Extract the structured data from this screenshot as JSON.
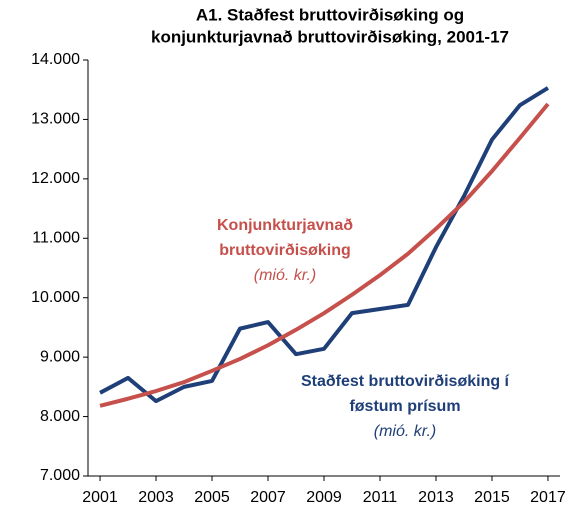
{
  "chart_data": {
    "type": "line",
    "title": [
      "A1. Staðfest bruttovirðisøking  og",
      "konjunkturjavnað bruttovirðisøking,  2001-17"
    ],
    "x": [
      2001,
      2002,
      2003,
      2004,
      2005,
      2006,
      2007,
      2008,
      2009,
      2010,
      2011,
      2012,
      2013,
      2014,
      2015,
      2016,
      2017
    ],
    "series": [
      {
        "color": "#1f3f78",
        "values": [
          8400,
          8650,
          8260,
          8500,
          8600,
          9480,
          9590,
          9050,
          9140,
          9740,
          9810,
          9880,
          10850,
          11710,
          12660,
          13240,
          13530
        ]
      },
      {
        "color": "#c6504b",
        "values": [
          8180,
          8300,
          8430,
          8580,
          8770,
          8970,
          9200,
          9460,
          9740,
          10050,
          10380,
          10740,
          11160,
          11610,
          12130,
          12690,
          13260
        ]
      }
    ],
    "annotations": [
      {
        "lines": [
          "Konjunkturjavnað",
          "bruttovirðisøking",
          "(mió. kr.)"
        ],
        "color": "#c6504b"
      },
      {
        "lines": [
          "Staðfest bruttovirðisøking í",
          "føstum prísum",
          "(mió. kr.)"
        ],
        "color": "#1f3f78"
      }
    ],
    "xlim": [
      2000.57,
      2017.43
    ],
    "xticks": [
      2001,
      2003,
      2005,
      2007,
      2009,
      2011,
      2013,
      2015,
      2017
    ],
    "ylim": [
      7000,
      14000
    ],
    "yticks": [
      {
        "value": 7000,
        "label": "7.000"
      },
      {
        "value": 8000,
        "label": "8.000"
      },
      {
        "value": 9000,
        "label": "9.000"
      },
      {
        "value": 10000,
        "label": "10.000"
      },
      {
        "value": 11000,
        "label": "11.000"
      },
      {
        "value": 12000,
        "label": "12.000"
      },
      {
        "value": 13000,
        "label": "13.000"
      },
      {
        "value": 14000,
        "label": "14.000"
      }
    ],
    "grid": false
  }
}
